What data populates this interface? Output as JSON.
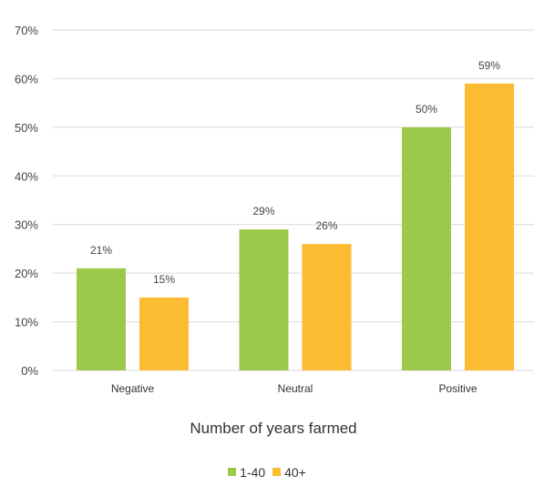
{
  "chart_data": {
    "type": "bar",
    "title": "",
    "xlabel": "Number of years farmed",
    "ylabel": "",
    "categories": [
      "Negative",
      "Neutral",
      "Positive"
    ],
    "series": [
      {
        "name": "1-40",
        "color": "#9cc94b",
        "values": [
          21,
          29,
          50
        ],
        "labels": [
          "21%",
          "29%",
          "50%"
        ]
      },
      {
        "name": "40+",
        "color": "#fbbc33",
        "values": [
          15,
          26,
          59
        ],
        "labels": [
          "15%",
          "26%",
          "59%"
        ]
      }
    ],
    "ylim": [
      0,
      70
    ],
    "yticks": [
      0,
      10,
      20,
      30,
      40,
      50,
      60,
      70
    ],
    "ytick_labels": [
      "0%",
      "10%",
      "20%",
      "30%",
      "40%",
      "50%",
      "60%",
      "70%"
    ],
    "grid": true,
    "legend_position": "bottom"
  }
}
